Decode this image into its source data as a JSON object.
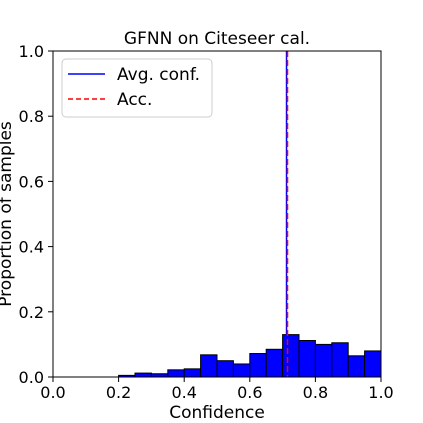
{
  "chart_data": {
    "type": "bar",
    "title": "GFNN on Citeseer cal.",
    "xlabel": "Confidence",
    "ylabel": "Proportion of samples",
    "xlim": [
      0.0,
      1.0
    ],
    "ylim": [
      0.0,
      1.0
    ],
    "xticks": [
      "0.0",
      "0.2",
      "0.4",
      "0.6",
      "0.8",
      "1.0"
    ],
    "yticks": [
      "0.0",
      "0.2",
      "0.4",
      "0.6",
      "0.8",
      "1.0"
    ],
    "grid": false,
    "legend_position": "top-left",
    "bin_width": 0.05,
    "bin_starts": [
      0.2,
      0.25,
      0.3,
      0.35,
      0.4,
      0.45,
      0.5,
      0.55,
      0.6,
      0.65,
      0.7,
      0.75,
      0.8,
      0.85,
      0.9,
      0.95
    ],
    "values": [
      0.005,
      0.012,
      0.01,
      0.022,
      0.025,
      0.068,
      0.05,
      0.04,
      0.072,
      0.085,
      0.13,
      0.112,
      0.1,
      0.105,
      0.065,
      0.08
    ],
    "bar_color": "#0000ff",
    "bar_edge_color": "#000000",
    "lines": [
      {
        "name": "Avg. conf.",
        "x": 0.712,
        "color": "#0000ff",
        "style": "solid"
      },
      {
        "name": "Acc.",
        "x": 0.715,
        "color": "#ff0000",
        "style": "dashed"
      }
    ]
  }
}
